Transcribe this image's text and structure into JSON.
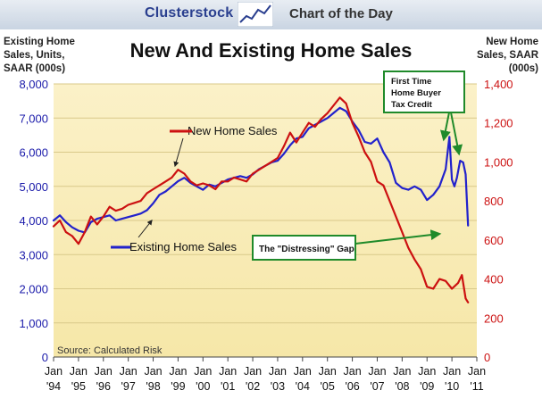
{
  "header": {
    "brand": "Clusterstock",
    "tagline": "Chart of the Day"
  },
  "chart_data": {
    "type": "line",
    "title": "New And Existing Home Sales",
    "ylabel_left": [
      "Existing Home",
      "Sales, Units,",
      "SAAR (000s)"
    ],
    "ylabel_right": [
      "New Home",
      "Sales, SAAR",
      "(000s)"
    ],
    "source": "Source: Calculated Risk",
    "x_ticks": [
      {
        "top": "Jan",
        "bottom": "'94",
        "x": 1994
      },
      {
        "top": "Jan",
        "bottom": "'95",
        "x": 1995
      },
      {
        "top": "Jan",
        "bottom": "'96",
        "x": 1996
      },
      {
        "top": "Jan",
        "bottom": "'97",
        "x": 1997
      },
      {
        "top": "Jan",
        "bottom": "'98",
        "x": 1998
      },
      {
        "top": "Jan",
        "bottom": "'99",
        "x": 1999
      },
      {
        "top": "Jan",
        "bottom": "'00",
        "x": 2000
      },
      {
        "top": "Jan",
        "bottom": "'01",
        "x": 2001
      },
      {
        "top": "Jan",
        "bottom": "'02",
        "x": 2002
      },
      {
        "top": "Jan",
        "bottom": "'03",
        "x": 2003
      },
      {
        "top": "Jan",
        "bottom": "'04",
        "x": 2004
      },
      {
        "top": "Jan",
        "bottom": "'05",
        "x": 2005
      },
      {
        "top": "Jan",
        "bottom": "'06",
        "x": 2006
      },
      {
        "top": "Jan",
        "bottom": "'07",
        "x": 2007
      },
      {
        "top": "Jan",
        "bottom": "'08",
        "x": 2008
      },
      {
        "top": "Jan",
        "bottom": "'09",
        "x": 2009
      },
      {
        "top": "Jan",
        "bottom": "'10",
        "x": 2010
      },
      {
        "top": "Jan",
        "bottom": "'11",
        "x": 2011
      }
    ],
    "xlim": [
      1994,
      2011
    ],
    "left_axis": {
      "ylim": [
        0,
        8000
      ],
      "ticks": [
        0,
        1000,
        2000,
        3000,
        4000,
        5000,
        6000,
        7000,
        8000
      ],
      "tick_labels": [
        "0",
        "1,000",
        "2,000",
        "3,000",
        "4,000",
        "5,000",
        "6,000",
        "7,000",
        "8,000"
      ],
      "color": "#1a1aaa"
    },
    "right_axis": {
      "ylim": [
        0,
        1400
      ],
      "ticks": [
        0,
        200,
        400,
        600,
        800,
        1000,
        1200,
        1400
      ],
      "tick_labels": [
        "0",
        "200",
        "400",
        "600",
        "800",
        "1,000",
        "1,200",
        "1,400"
      ],
      "color": "#cc1111"
    },
    "grid": true,
    "series": [
      {
        "name": "Existing Home Sales",
        "axis": "left",
        "color": "#2222cc",
        "points": [
          [
            1994.0,
            4000
          ],
          [
            1994.25,
            4150
          ],
          [
            1994.5,
            3950
          ],
          [
            1994.75,
            3800
          ],
          [
            1995.0,
            3700
          ],
          [
            1995.25,
            3650
          ],
          [
            1995.5,
            3950
          ],
          [
            1995.75,
            4050
          ],
          [
            1996.0,
            4100
          ],
          [
            1996.25,
            4150
          ],
          [
            1996.5,
            4000
          ],
          [
            1996.75,
            4050
          ],
          [
            1997.0,
            4100
          ],
          [
            1997.25,
            4150
          ],
          [
            1997.5,
            4200
          ],
          [
            1997.75,
            4300
          ],
          [
            1998.0,
            4500
          ],
          [
            1998.25,
            4750
          ],
          [
            1998.5,
            4850
          ],
          [
            1998.75,
            5000
          ],
          [
            1999.0,
            5150
          ],
          [
            1999.25,
            5250
          ],
          [
            1999.5,
            5100
          ],
          [
            1999.75,
            5000
          ],
          [
            2000.0,
            4900
          ],
          [
            2000.25,
            5050
          ],
          [
            2000.5,
            5000
          ],
          [
            2000.75,
            5100
          ],
          [
            2001.0,
            5200
          ],
          [
            2001.25,
            5250
          ],
          [
            2001.5,
            5300
          ],
          [
            2001.75,
            5250
          ],
          [
            2002.0,
            5350
          ],
          [
            2002.25,
            5500
          ],
          [
            2002.5,
            5600
          ],
          [
            2002.75,
            5700
          ],
          [
            2003.0,
            5750
          ],
          [
            2003.25,
            5950
          ],
          [
            2003.5,
            6200
          ],
          [
            2003.75,
            6400
          ],
          [
            2004.0,
            6450
          ],
          [
            2004.25,
            6700
          ],
          [
            2004.5,
            6800
          ],
          [
            2004.75,
            6900
          ],
          [
            2005.0,
            7000
          ],
          [
            2005.25,
            7150
          ],
          [
            2005.5,
            7300
          ],
          [
            2005.75,
            7200
          ],
          [
            2006.0,
            6900
          ],
          [
            2006.25,
            6650
          ],
          [
            2006.5,
            6300
          ],
          [
            2006.75,
            6250
          ],
          [
            2007.0,
            6400
          ],
          [
            2007.25,
            6000
          ],
          [
            2007.5,
            5700
          ],
          [
            2007.75,
            5100
          ],
          [
            2008.0,
            4950
          ],
          [
            2008.25,
            4900
          ],
          [
            2008.5,
            5000
          ],
          [
            2008.75,
            4900
          ],
          [
            2009.0,
            4600
          ],
          [
            2009.25,
            4750
          ],
          [
            2009.5,
            5000
          ],
          [
            2009.75,
            5500
          ],
          [
            2009.9,
            6450
          ],
          [
            2010.0,
            5200
          ],
          [
            2010.1,
            5000
          ],
          [
            2010.2,
            5250
          ],
          [
            2010.33,
            5750
          ],
          [
            2010.45,
            5700
          ],
          [
            2010.55,
            5350
          ],
          [
            2010.65,
            3850
          ]
        ]
      },
      {
        "name": "New Home Sales",
        "axis": "right",
        "color": "#cc1111",
        "points": [
          [
            1994.0,
            670
          ],
          [
            1994.25,
            700
          ],
          [
            1994.5,
            640
          ],
          [
            1994.75,
            620
          ],
          [
            1995.0,
            580
          ],
          [
            1995.25,
            640
          ],
          [
            1995.5,
            720
          ],
          [
            1995.75,
            680
          ],
          [
            1996.0,
            720
          ],
          [
            1996.25,
            770
          ],
          [
            1996.5,
            750
          ],
          [
            1996.75,
            760
          ],
          [
            1997.0,
            780
          ],
          [
            1997.25,
            790
          ],
          [
            1997.5,
            800
          ],
          [
            1997.75,
            840
          ],
          [
            1998.0,
            860
          ],
          [
            1998.25,
            880
          ],
          [
            1998.5,
            900
          ],
          [
            1998.75,
            920
          ],
          [
            1999.0,
            960
          ],
          [
            1999.25,
            940
          ],
          [
            1999.5,
            900
          ],
          [
            1999.75,
            880
          ],
          [
            2000.0,
            890
          ],
          [
            2000.25,
            880
          ],
          [
            2000.5,
            860
          ],
          [
            2000.75,
            900
          ],
          [
            2001.0,
            900
          ],
          [
            2001.25,
            920
          ],
          [
            2001.5,
            910
          ],
          [
            2001.75,
            900
          ],
          [
            2002.0,
            940
          ],
          [
            2002.25,
            960
          ],
          [
            2002.5,
            980
          ],
          [
            2002.75,
            1000
          ],
          [
            2003.0,
            1020
          ],
          [
            2003.25,
            1080
          ],
          [
            2003.5,
            1150
          ],
          [
            2003.75,
            1100
          ],
          [
            2004.0,
            1150
          ],
          [
            2004.25,
            1200
          ],
          [
            2004.5,
            1180
          ],
          [
            2004.75,
            1220
          ],
          [
            2005.0,
            1250
          ],
          [
            2005.25,
            1290
          ],
          [
            2005.5,
            1330
          ],
          [
            2005.75,
            1300
          ],
          [
            2006.0,
            1200
          ],
          [
            2006.25,
            1130
          ],
          [
            2006.5,
            1050
          ],
          [
            2006.75,
            1000
          ],
          [
            2007.0,
            900
          ],
          [
            2007.25,
            880
          ],
          [
            2007.5,
            800
          ],
          [
            2007.75,
            720
          ],
          [
            2008.0,
            640
          ],
          [
            2008.25,
            560
          ],
          [
            2008.5,
            500
          ],
          [
            2008.75,
            450
          ],
          [
            2009.0,
            360
          ],
          [
            2009.25,
            350
          ],
          [
            2009.5,
            400
          ],
          [
            2009.75,
            390
          ],
          [
            2010.0,
            350
          ],
          [
            2010.25,
            380
          ],
          [
            2010.4,
            420
          ],
          [
            2010.55,
            300
          ],
          [
            2010.65,
            280
          ]
        ]
      }
    ],
    "annotations": {
      "new_label": "New Home Sales",
      "existing_label": "Existing Home Sales",
      "tax_credit_box": [
        "First Time",
        "Home Buyer",
        "Tax Credit"
      ],
      "gap_box": "The \"Distressing\" Gap"
    }
  }
}
